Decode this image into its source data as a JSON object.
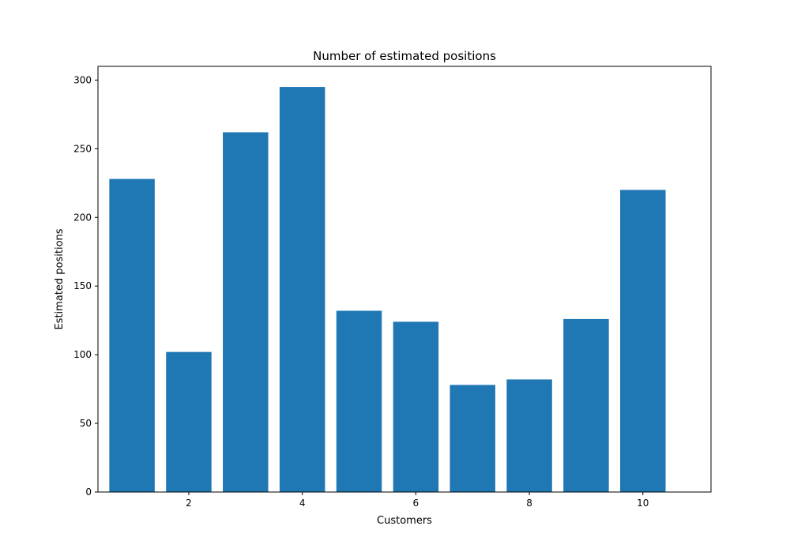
{
  "chart_data": {
    "type": "bar",
    "title": "Number of estimated positions",
    "xlabel": "Customers",
    "ylabel": "Estimated positions",
    "categories": [
      1,
      2,
      3,
      4,
      5,
      6,
      7,
      8,
      9,
      10
    ],
    "values": [
      228,
      102,
      262,
      295,
      132,
      124,
      78,
      82,
      126,
      220
    ],
    "xlim": [
      0.4,
      11.2
    ],
    "ylim": [
      0,
      310
    ],
    "xticks": [
      2,
      4,
      6,
      8,
      10
    ],
    "yticks": [
      0,
      50,
      100,
      150,
      200,
      250,
      300
    ],
    "grid": false,
    "legend": "none",
    "bar_color": "#1f77b4"
  }
}
